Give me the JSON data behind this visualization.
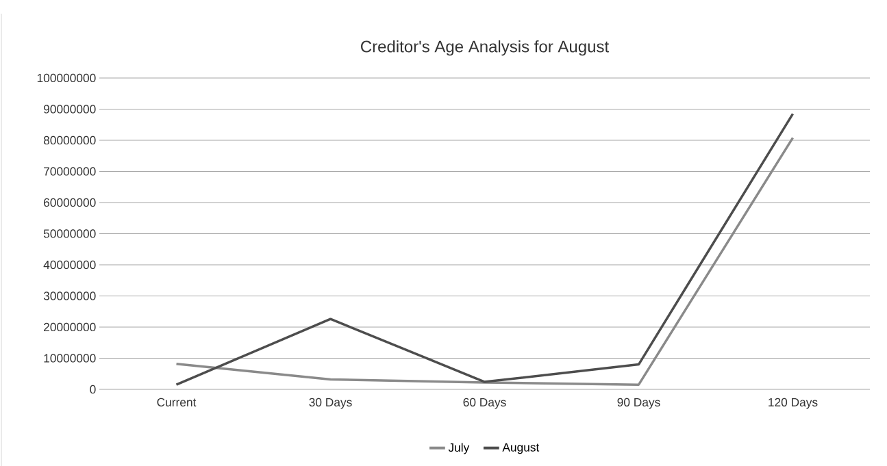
{
  "chart_data": {
    "type": "line",
    "title": "Creditor's Age Analysis for August",
    "categories": [
      "Current",
      "30 Days",
      "60 Days",
      "90 Days",
      "120 Days"
    ],
    "series": [
      {
        "name": "July",
        "color": "#8a8a8a",
        "values": [
          8200000,
          3200000,
          2200000,
          1500000,
          80800000
        ]
      },
      {
        "name": "August",
        "color": "#4d4d4d",
        "values": [
          1500000,
          22600000,
          2400000,
          8000000,
          88500000
        ]
      }
    ],
    "ylim": [
      0,
      100000000
    ],
    "yticks": [
      0,
      10000000,
      20000000,
      30000000,
      40000000,
      50000000,
      60000000,
      70000000,
      80000000,
      90000000,
      100000000
    ],
    "grid": "y",
    "legend": "bottom",
    "marker": "none",
    "line_style": "solid"
  }
}
